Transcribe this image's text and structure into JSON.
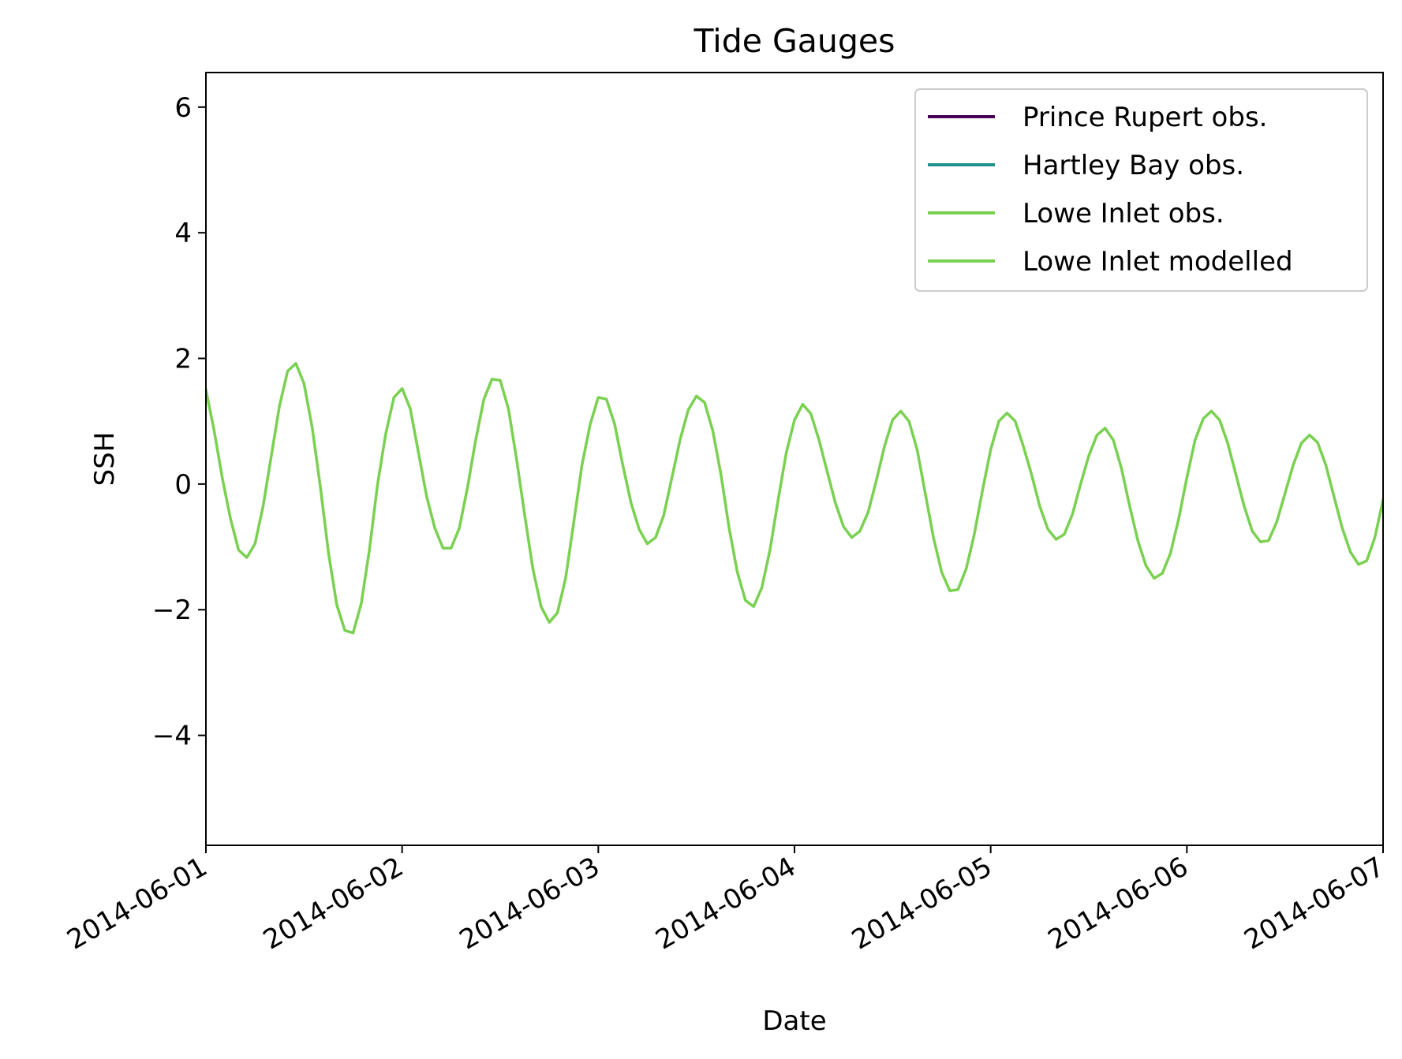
{
  "chart_data": {
    "type": "line",
    "title": "Tide Gauges",
    "xlabel": "Date",
    "ylabel": "SSH",
    "xlim": [
      "2014-06-01",
      "2014-06-07"
    ],
    "ylim": [
      -5.75,
      6.55
    ],
    "x_ticks": [
      "2014-06-01",
      "2014-06-02",
      "2014-06-03",
      "2014-06-04",
      "2014-06-05",
      "2014-06-06",
      "2014-06-07"
    ],
    "y_ticks": [
      6,
      4,
      2,
      0,
      -2,
      -4
    ],
    "y_tick_labels": [
      "6",
      "4",
      "2",
      "0",
      "−2",
      "−4"
    ],
    "grid": false,
    "legend_position": "top-right",
    "colors": {
      "prince_rupert": "#440154",
      "hartley_bay": "#21918c",
      "lowe_inlet": "#7ad151"
    },
    "series": [
      {
        "name": "Prince Rupert obs.",
        "color": "#440154",
        "x": [],
        "y": []
      },
      {
        "name": "Hartley Bay obs.",
        "color": "#21918c",
        "x": [],
        "y": []
      },
      {
        "name": "Lowe Inlet obs.",
        "color": "#7ad151",
        "x": [],
        "y": []
      },
      {
        "name": "Lowe Inlet modelled",
        "color": "#7ad151",
        "x": [
          "2014-06-01 00:00",
          "2014-06-01 01:00",
          "2014-06-01 02:00",
          "2014-06-01 03:00",
          "2014-06-01 04:00",
          "2014-06-01 05:00",
          "2014-06-01 06:00",
          "2014-06-01 07:00",
          "2014-06-01 08:00",
          "2014-06-01 09:00",
          "2014-06-01 10:00",
          "2014-06-01 11:00",
          "2014-06-01 12:00",
          "2014-06-01 13:00",
          "2014-06-01 14:00",
          "2014-06-01 15:00",
          "2014-06-01 16:00",
          "2014-06-01 17:00",
          "2014-06-01 18:00",
          "2014-06-01 19:00",
          "2014-06-01 20:00",
          "2014-06-01 21:00",
          "2014-06-01 22:00",
          "2014-06-01 23:00",
          "2014-06-02 00:00",
          "2014-06-02 01:00",
          "2014-06-02 02:00",
          "2014-06-02 03:00",
          "2014-06-02 04:00",
          "2014-06-02 05:00",
          "2014-06-02 06:00",
          "2014-06-02 07:00",
          "2014-06-02 08:00",
          "2014-06-02 09:00",
          "2014-06-02 10:00",
          "2014-06-02 11:00",
          "2014-06-02 12:00",
          "2014-06-02 13:00",
          "2014-06-02 14:00",
          "2014-06-02 15:00",
          "2014-06-02 16:00",
          "2014-06-02 17:00",
          "2014-06-02 18:00",
          "2014-06-02 19:00",
          "2014-06-02 20:00",
          "2014-06-02 21:00",
          "2014-06-02 22:00",
          "2014-06-02 23:00",
          "2014-06-03 00:00",
          "2014-06-03 01:00",
          "2014-06-03 02:00",
          "2014-06-03 03:00",
          "2014-06-03 04:00",
          "2014-06-03 05:00",
          "2014-06-03 06:00",
          "2014-06-03 07:00",
          "2014-06-03 08:00",
          "2014-06-03 09:00",
          "2014-06-03 10:00",
          "2014-06-03 11:00",
          "2014-06-03 12:00",
          "2014-06-03 13:00",
          "2014-06-03 14:00",
          "2014-06-03 15:00",
          "2014-06-03 16:00",
          "2014-06-03 17:00",
          "2014-06-03 18:00",
          "2014-06-03 19:00",
          "2014-06-03 20:00",
          "2014-06-03 21:00",
          "2014-06-03 22:00",
          "2014-06-03 23:00",
          "2014-06-04 00:00",
          "2014-06-04 01:00",
          "2014-06-04 02:00",
          "2014-06-04 03:00",
          "2014-06-04 04:00",
          "2014-06-04 05:00",
          "2014-06-04 06:00",
          "2014-06-04 07:00",
          "2014-06-04 08:00",
          "2014-06-04 09:00",
          "2014-06-04 10:00",
          "2014-06-04 11:00",
          "2014-06-04 12:00",
          "2014-06-04 13:00",
          "2014-06-04 14:00",
          "2014-06-04 15:00",
          "2014-06-04 16:00",
          "2014-06-04 17:00",
          "2014-06-04 18:00",
          "2014-06-04 19:00",
          "2014-06-04 20:00",
          "2014-06-04 21:00",
          "2014-06-04 22:00",
          "2014-06-04 23:00",
          "2014-06-05 00:00",
          "2014-06-05 01:00",
          "2014-06-05 02:00",
          "2014-06-05 03:00",
          "2014-06-05 04:00",
          "2014-06-05 05:00",
          "2014-06-05 06:00",
          "2014-06-05 07:00",
          "2014-06-05 08:00",
          "2014-06-05 09:00",
          "2014-06-05 10:00",
          "2014-06-05 11:00",
          "2014-06-05 12:00",
          "2014-06-05 13:00",
          "2014-06-05 14:00",
          "2014-06-05 15:00",
          "2014-06-05 16:00",
          "2014-06-05 17:00",
          "2014-06-05 18:00",
          "2014-06-05 19:00",
          "2014-06-05 20:00",
          "2014-06-05 21:00",
          "2014-06-05 22:00",
          "2014-06-05 23:00",
          "2014-06-06 00:00",
          "2014-06-06 01:00",
          "2014-06-06 02:00",
          "2014-06-06 03:00",
          "2014-06-06 04:00",
          "2014-06-06 05:00",
          "2014-06-06 06:00",
          "2014-06-06 07:00",
          "2014-06-06 08:00",
          "2014-06-06 09:00",
          "2014-06-06 10:00",
          "2014-06-06 11:00",
          "2014-06-06 12:00",
          "2014-06-06 13:00",
          "2014-06-06 14:00",
          "2014-06-06 15:00",
          "2014-06-06 16:00",
          "2014-06-06 17:00",
          "2014-06-06 18:00",
          "2014-06-06 19:00",
          "2014-06-06 20:00",
          "2014-06-06 21:00",
          "2014-06-06 22:00",
          "2014-06-06 23:00",
          "2014-06-07 00:00"
        ],
        "y": [
          1.5,
          0.85,
          0.1,
          -0.55,
          -1.05,
          -1.17,
          -0.95,
          -0.35,
          0.45,
          1.25,
          1.8,
          1.92,
          1.6,
          0.9,
          -0.05,
          -1.1,
          -1.92,
          -2.33,
          -2.37,
          -1.9,
          -1.05,
          0.0,
          0.8,
          1.38,
          1.52,
          1.2,
          0.5,
          -0.2,
          -0.7,
          -1.02,
          -1.02,
          -0.7,
          -0.05,
          0.7,
          1.35,
          1.67,
          1.65,
          1.2,
          0.4,
          -0.5,
          -1.35,
          -1.95,
          -2.2,
          -2.05,
          -1.5,
          -0.6,
          0.3,
          0.95,
          1.38,
          1.35,
          0.95,
          0.3,
          -0.3,
          -0.72,
          -0.95,
          -0.85,
          -0.5,
          0.1,
          0.7,
          1.18,
          1.4,
          1.3,
          0.85,
          0.15,
          -0.7,
          -1.4,
          -1.85,
          -1.95,
          -1.65,
          -1.05,
          -0.25,
          0.5,
          1.02,
          1.27,
          1.12,
          0.7,
          0.2,
          -0.3,
          -0.68,
          -0.85,
          -0.75,
          -0.45,
          0.05,
          0.6,
          1.02,
          1.16,
          1.0,
          0.55,
          -0.15,
          -0.85,
          -1.4,
          -1.7,
          -1.68,
          -1.35,
          -0.8,
          -0.1,
          0.55,
          1.0,
          1.13,
          1.0,
          0.6,
          0.15,
          -0.35,
          -0.72,
          -0.88,
          -0.8,
          -0.48,
          0.0,
          0.45,
          0.78,
          0.89,
          0.7,
          0.25,
          -0.35,
          -0.9,
          -1.3,
          -1.5,
          -1.42,
          -1.1,
          -0.55,
          0.1,
          0.7,
          1.04,
          1.16,
          1.02,
          0.65,
          0.15,
          -0.35,
          -0.75,
          -0.92,
          -0.9,
          -0.6,
          -0.15,
          0.3,
          0.65,
          0.78,
          0.66,
          0.3,
          -0.2,
          -0.7,
          -1.08,
          -1.28,
          -1.22,
          -0.85,
          -0.25
        ]
      }
    ]
  }
}
